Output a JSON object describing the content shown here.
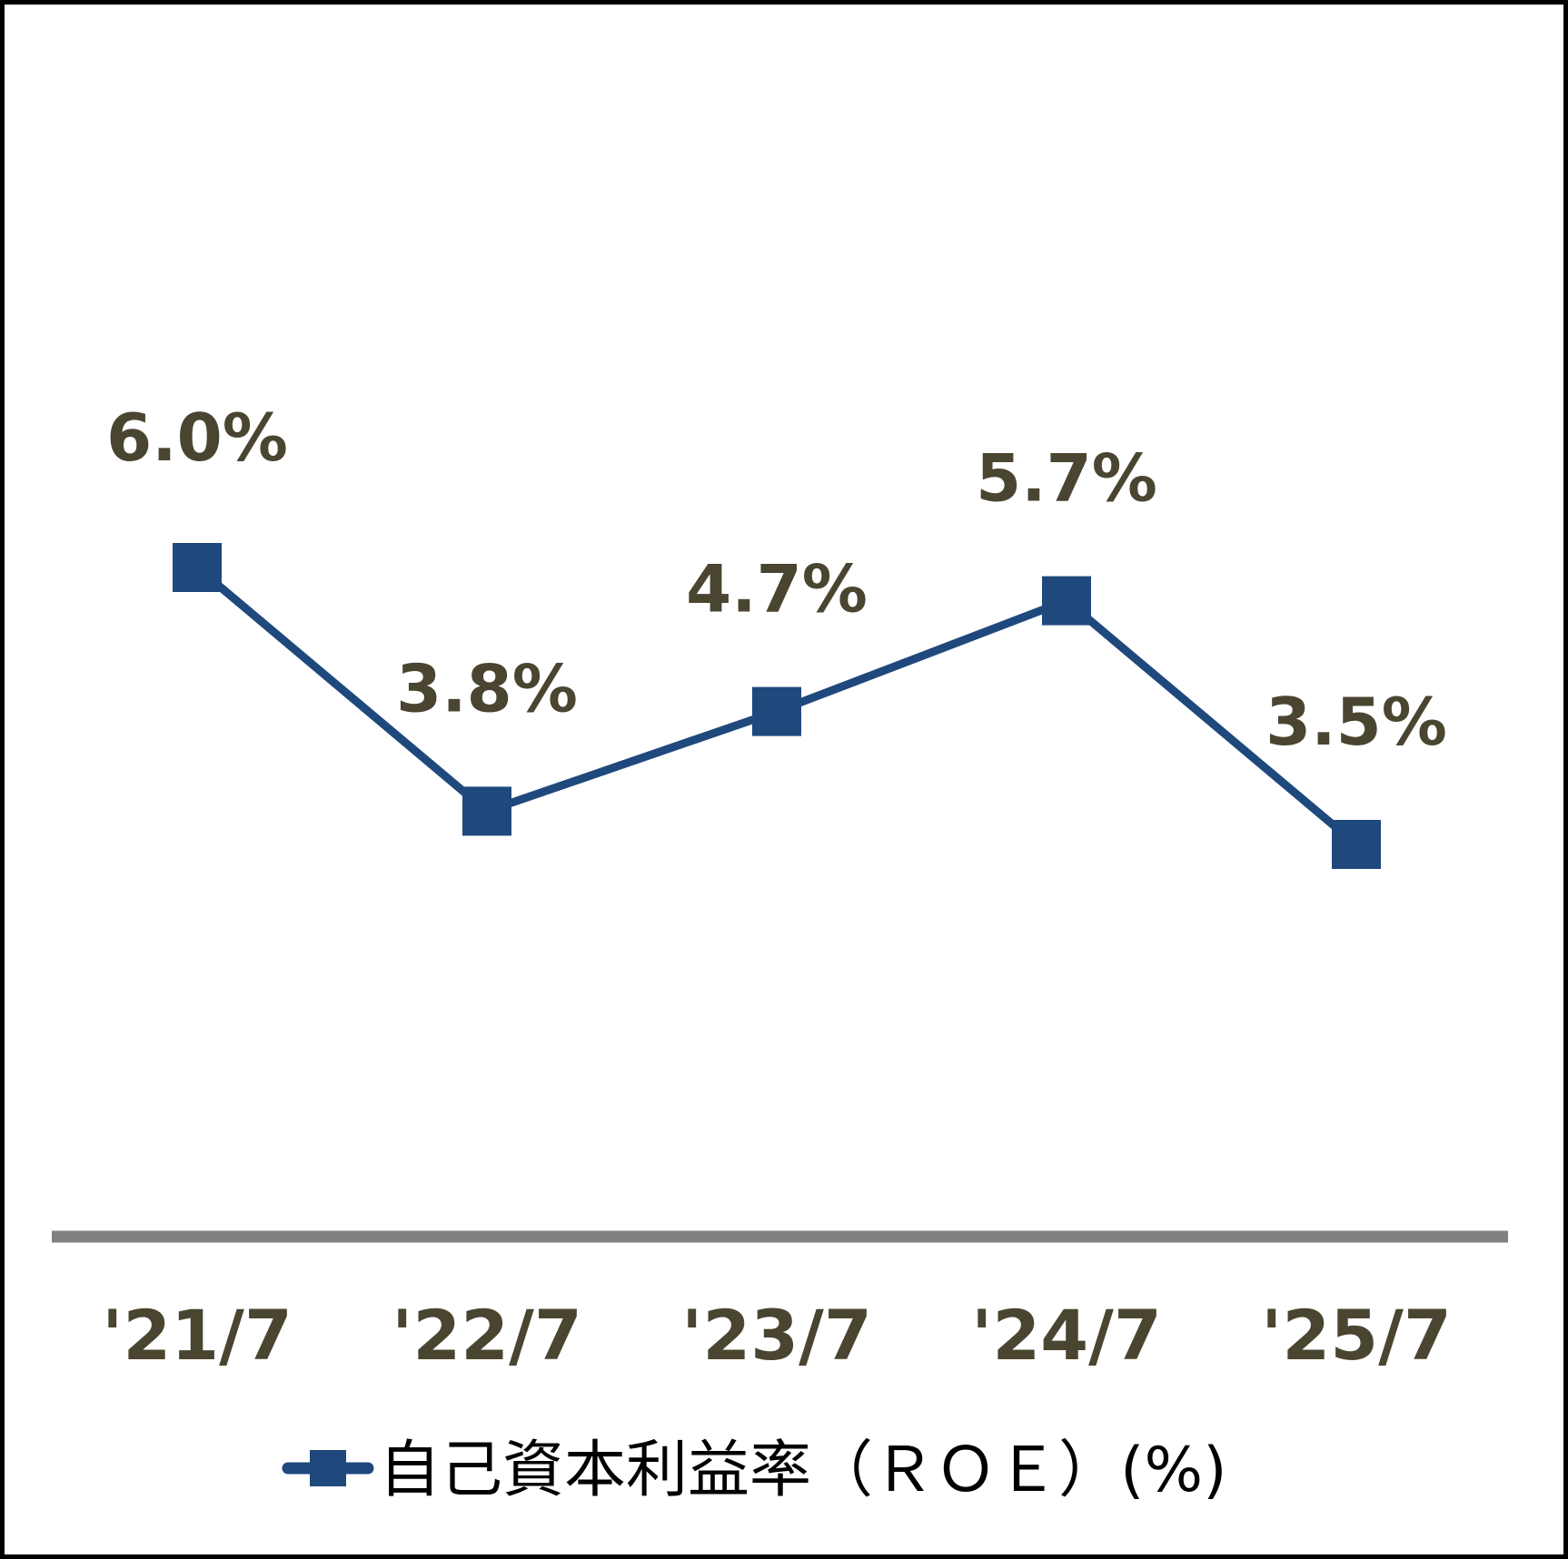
{
  "chart_data": {
    "type": "line",
    "categories": [
      "'21/7",
      "'22/7",
      "'23/7",
      "'24/7",
      "'25/7"
    ],
    "series": [
      {
        "name": "自己資本利益率（ＲＯＥ）(%)",
        "values": [
          6.0,
          3.8,
          4.7,
          5.7,
          3.5
        ],
        "labels": [
          "6.0%",
          "3.8%",
          "4.7%",
          "5.7%",
          "3.5%"
        ],
        "color": "#1F497D",
        "marker": "square"
      }
    ],
    "title": "",
    "xlabel": "",
    "ylabel": "",
    "ylim": [
      0,
      7
    ],
    "grid": false,
    "legend": "bottom",
    "colors": {
      "line": "#1F497D",
      "axis": "#808080",
      "label_text": "#4A4530",
      "legend_text": "#000000"
    }
  }
}
